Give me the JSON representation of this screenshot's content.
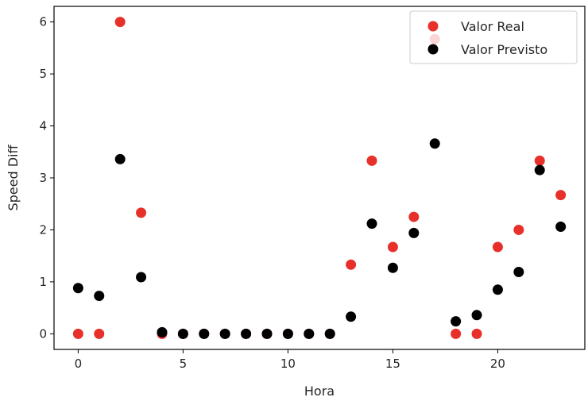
{
  "chart_data": {
    "type": "scatter",
    "xlabel": "Hora",
    "ylabel": "Speed Diff",
    "xlim": [
      -1.15,
      24.15
    ],
    "ylim": [
      -0.3,
      6.3
    ],
    "xticks": [
      0,
      5,
      10,
      15,
      20
    ],
    "yticks": [
      0,
      1,
      2,
      3,
      4,
      5,
      6
    ],
    "grid": false,
    "legend_position": "top-right",
    "series": [
      {
        "name": "Valor Real",
        "color": "#e8302a",
        "x": [
          0,
          1,
          2,
          3,
          4,
          5,
          6,
          7,
          8,
          9,
          10,
          11,
          12,
          13,
          14,
          15,
          16,
          17,
          18,
          19,
          20,
          21,
          22,
          23
        ],
        "y": [
          0,
          0,
          6,
          2.33,
          0,
          0,
          0,
          0,
          0,
          0,
          0,
          0,
          0,
          1.33,
          3.33,
          1.67,
          2.25,
          5.67,
          0,
          0,
          1.67,
          2.0,
          3.33,
          2.67
        ]
      },
      {
        "name": "Valor Previsto",
        "color": "#000000",
        "x": [
          0,
          1,
          2,
          3,
          4,
          5,
          6,
          7,
          8,
          9,
          10,
          11,
          12,
          13,
          14,
          15,
          16,
          17,
          18,
          19,
          20,
          21,
          22,
          23
        ],
        "y": [
          0.88,
          0.73,
          3.36,
          1.09,
          0.03,
          0.0,
          0.0,
          0.0,
          0.0,
          0.0,
          0.0,
          0.0,
          0.0,
          0.33,
          2.12,
          1.27,
          1.94,
          3.66,
          0.24,
          0.36,
          0.85,
          1.19,
          3.15,
          2.06
        ]
      }
    ]
  }
}
